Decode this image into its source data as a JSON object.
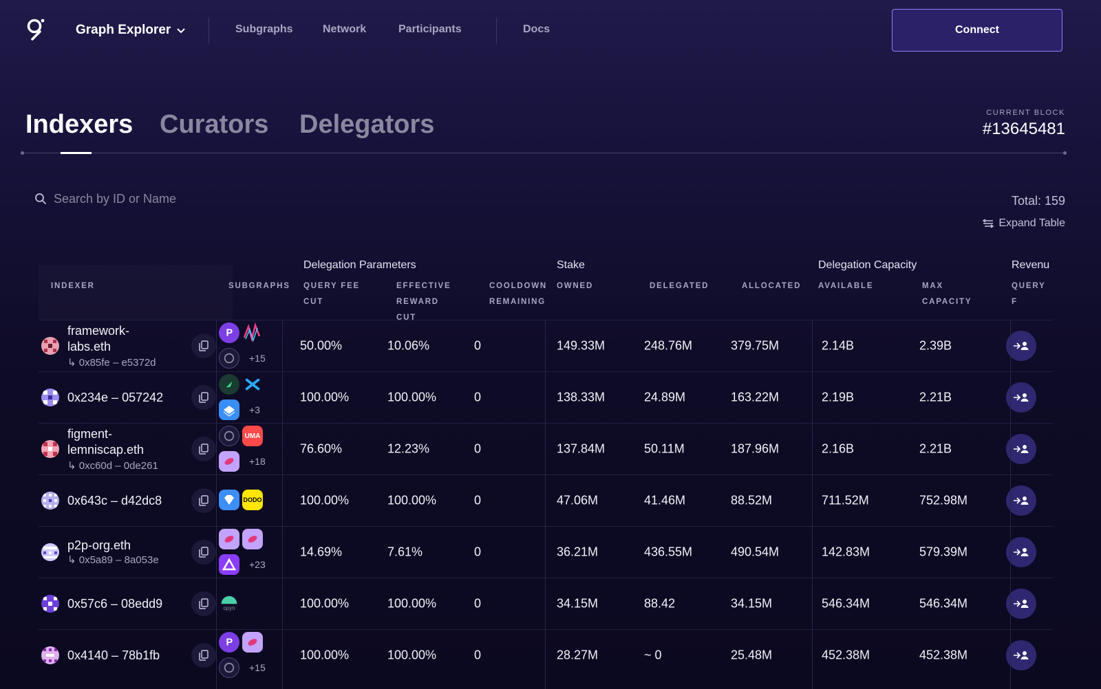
{
  "nav": {
    "brand": "Graph Explorer",
    "links": [
      "Subgraphs",
      "Network",
      "Participants",
      "Docs"
    ],
    "connect": "Connect"
  },
  "tabs": [
    "Indexers",
    "Curators",
    "Delegators"
  ],
  "current_block": {
    "label": "CURRENT BLOCK",
    "value": "#13645481"
  },
  "search": {
    "placeholder": "Search by ID or Name"
  },
  "total": "Total: 159",
  "expand": "Expand Table",
  "groups": {
    "delegation_parameters": "Delegation Parameters",
    "stake": "Stake",
    "delegation_capacity": "Delegation Capacity",
    "revenue": "Revenu"
  },
  "columns": {
    "indexer": "INDEXER",
    "subgraphs": "SUBGRAPHS",
    "query_fee_cut": "QUERY FEE\nCUT",
    "effective_reward_cut": "EFFECTIVE\nREWARD\nCUT",
    "cooldown": "COOLDOWN\nREMAINING",
    "owned": "OWNED",
    "delegated": "DELEGATED",
    "allocated": "ALLOCATED",
    "available": "AVAILABLE",
    "max_capacity": "MAX\nCAPACITY",
    "query_f": "QUERY F"
  },
  "rows": [
    {
      "name": "framework-\nlabs.eth",
      "addr": "↳ 0x85fe – e5372d",
      "more": "+15",
      "query_fee_cut": "50.00%",
      "reward_cut": "10.06%",
      "cooldown": "0",
      "owned": "149.33M",
      "delegated": "248.76M",
      "allocated": "379.75M",
      "available": "2.14B",
      "max_capacity": "2.39B"
    },
    {
      "name": "0x234e – 057242",
      "addr": "",
      "more": "+3",
      "query_fee_cut": "100.00%",
      "reward_cut": "100.00%",
      "cooldown": "0",
      "owned": "138.33M",
      "delegated": "24.89M",
      "allocated": "163.22M",
      "available": "2.19B",
      "max_capacity": "2.21B"
    },
    {
      "name": "figment-\nlemniscap.eth",
      "addr": "↳ 0xc60d – 0de261",
      "more": "+18",
      "query_fee_cut": "76.60%",
      "reward_cut": "12.23%",
      "cooldown": "0",
      "owned": "137.84M",
      "delegated": "50.11M",
      "allocated": "187.96M",
      "available": "2.16B",
      "max_capacity": "2.21B"
    },
    {
      "name": "0x643c – d42dc8",
      "addr": "",
      "more": "",
      "query_fee_cut": "100.00%",
      "reward_cut": "100.00%",
      "cooldown": "0",
      "owned": "47.06M",
      "delegated": "41.46M",
      "allocated": "88.52M",
      "available": "711.52M",
      "max_capacity": "752.98M"
    },
    {
      "name": "p2p-org.eth",
      "addr": "↳ 0x5a89 – 8a053e",
      "more": "+23",
      "query_fee_cut": "14.69%",
      "reward_cut": "7.61%",
      "cooldown": "0",
      "owned": "36.21M",
      "delegated": "436.55M",
      "allocated": "490.54M",
      "available": "142.83M",
      "max_capacity": "579.39M"
    },
    {
      "name": "0x57c6 – 08edd9",
      "addr": "",
      "more": "",
      "query_fee_cut": "100.00%",
      "reward_cut": "100.00%",
      "cooldown": "0",
      "owned": "34.15M",
      "delegated": "88.42",
      "allocated": "34.15M",
      "available": "546.34M",
      "max_capacity": "546.34M"
    },
    {
      "name": "0x4140 – 78b1fb",
      "addr": "",
      "more": "+15",
      "query_fee_cut": "100.00%",
      "reward_cut": "100.00%",
      "cooldown": "0",
      "owned": "28.27M",
      "delegated": "~ 0",
      "allocated": "25.48M",
      "available": "452.38M",
      "max_capacity": "452.38M"
    }
  ],
  "subgraph_icon_labels": {
    "uma": "UMA",
    "dodo": "DODO",
    "opyn": "opyn"
  }
}
